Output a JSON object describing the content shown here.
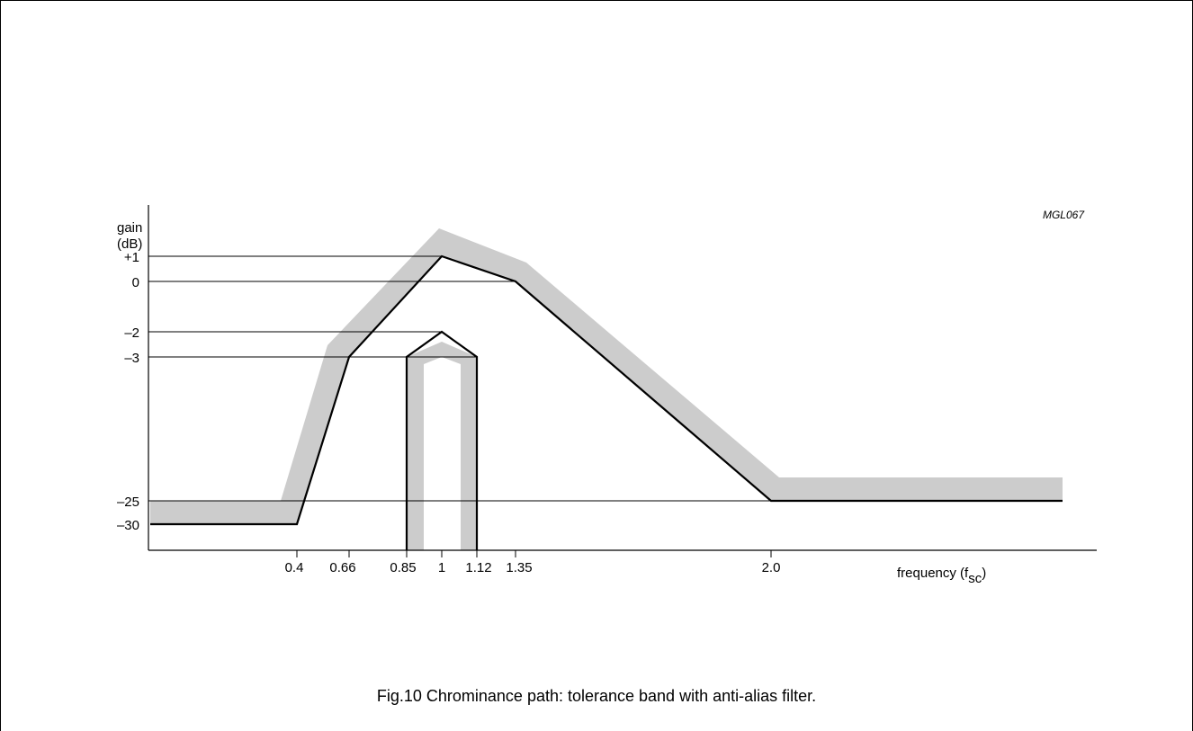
{
  "figure": {
    "code": "MGL067",
    "caption": "Fig.10  Chrominance path: tolerance band with anti-alias filter."
  },
  "axes": {
    "y_label_line1": "gain",
    "y_label_line2": "(dB)",
    "x_label_main": "frequency (f",
    "x_label_sub": "sc",
    "x_label_close": ")",
    "y_ticks": [
      "+1",
      "0",
      "–2",
      "–3",
      "–25",
      "–30"
    ],
    "x_ticks": [
      "0.4",
      "0.66",
      "0.85",
      "1",
      "1.12",
      "1.35",
      "2.0"
    ]
  },
  "chart_data": {
    "type": "line",
    "x_ticks": [
      0.4,
      0.66,
      0.85,
      1,
      1.12,
      1.35,
      2.0
    ],
    "y_ticks": [
      1,
      0,
      -2,
      -3,
      -25,
      -30
    ],
    "series": [
      {
        "x": [
          0.4,
          0.66,
          1,
          1.35,
          2.0
        ],
        "y": [
          -30,
          -3,
          1,
          0,
          -25
        ]
      },
      {
        "x": [
          0.85,
          0.85,
          1,
          1.12,
          1.12
        ],
        "y": [
          -30,
          -3,
          -2,
          -3,
          -30
        ]
      }
    ],
    "colors": {
      "curve": "#000000",
      "tolerance_band": "#cccccc"
    }
  }
}
